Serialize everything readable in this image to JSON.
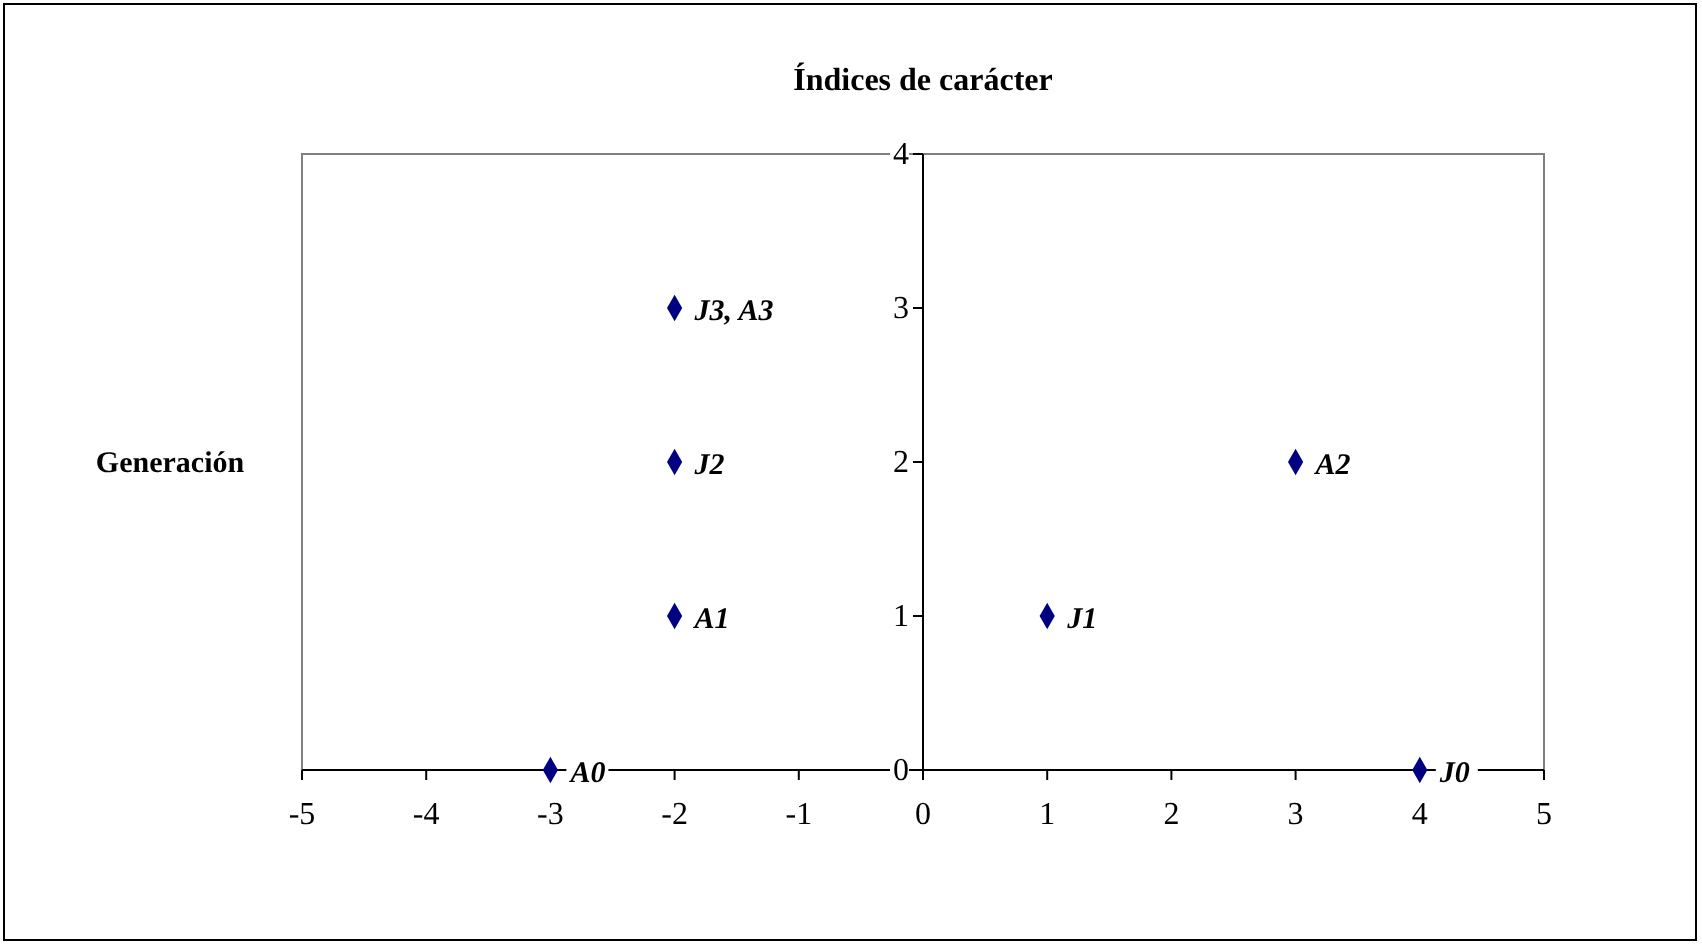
{
  "chart_data": {
    "type": "scatter",
    "title": "Índices de carácter",
    "ylabel": "Generación",
    "series": [
      {
        "color": "#000080",
        "x": [
          -3,
          -2,
          -2,
          -2,
          1,
          3,
          4
        ],
        "values": [
          0,
          1,
          2,
          3,
          1,
          2,
          0
        ]
      }
    ],
    "xlim": [
      -5,
      5
    ],
    "ylim": [
      0,
      4
    ],
    "xticks": [
      -5,
      -4,
      -3,
      -2,
      -1,
      0,
      1,
      2,
      3,
      4,
      5
    ],
    "yticks": [
      0,
      1,
      2,
      3,
      4
    ],
    "marker": "diamond",
    "grid": false,
    "annotations": [
      {
        "text": "A0",
        "x": -3,
        "y": 0
      },
      {
        "text": "A1",
        "x": -2,
        "y": 1
      },
      {
        "text": "J2",
        "x": -2,
        "y": 2
      },
      {
        "text": "J3, A3",
        "x": -2,
        "y": 3
      },
      {
        "text": "J1",
        "x": 1,
        "y": 1
      },
      {
        "text": "A2",
        "x": 3,
        "y": 2
      },
      {
        "text": "J0",
        "x": 4,
        "y": 0
      }
    ]
  }
}
